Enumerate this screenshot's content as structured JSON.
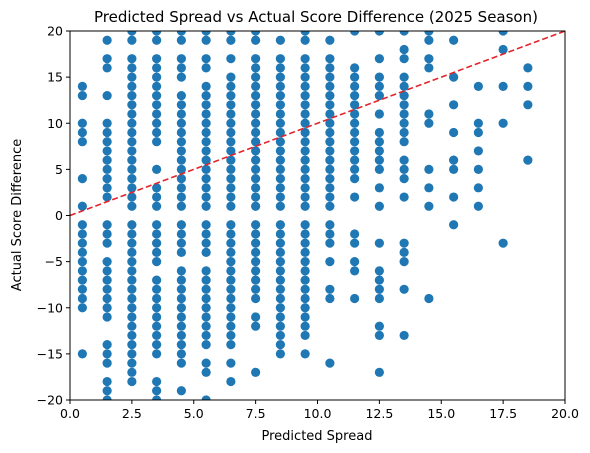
{
  "chart_data": {
    "type": "scatter",
    "title": "Predicted Spread vs Actual Score Difference (2025 Season)",
    "xlabel": "Predicted Spread",
    "ylabel": "Actual Score Difference",
    "xlim": [
      0,
      20
    ],
    "ylim": [
      -20,
      20
    ],
    "xticks": [
      0,
      2.5,
      5,
      7.5,
      10,
      12.5,
      15,
      17.5,
      20
    ],
    "xtick_labels": [
      "0.0",
      "2.5",
      "5.0",
      "7.5",
      "10.0",
      "12.5",
      "15.0",
      "17.5",
      "20.0"
    ],
    "yticks": [
      -20,
      -15,
      -10,
      -5,
      0,
      5,
      10,
      15,
      20
    ],
    "ytick_labels": [
      "−20",
      "−15",
      "−10",
      "−5",
      "0",
      "5",
      "10",
      "15",
      "20"
    ],
    "grid": false,
    "point_color": "#1f77b4",
    "reference_line": {
      "style": "dashed",
      "color": "#e3242b",
      "from": [
        0,
        0
      ],
      "to": [
        20,
        20
      ]
    },
    "points": [
      [
        0.5,
        14
      ],
      [
        0.5,
        13
      ],
      [
        0.5,
        10
      ],
      [
        0.5,
        9
      ],
      [
        0.5,
        8
      ],
      [
        0.5,
        4
      ],
      [
        0.5,
        1
      ],
      [
        0.5,
        -1
      ],
      [
        0.5,
        -2
      ],
      [
        0.5,
        -3
      ],
      [
        0.5,
        -4
      ],
      [
        0.5,
        -5
      ],
      [
        0.5,
        -6
      ],
      [
        0.5,
        -7
      ],
      [
        0.5,
        -8
      ],
      [
        0.5,
        -9
      ],
      [
        0.5,
        -10
      ],
      [
        0.5,
        -15
      ],
      [
        1.5,
        19
      ],
      [
        1.5,
        17
      ],
      [
        1.5,
        16
      ],
      [
        1.5,
        13
      ],
      [
        1.5,
        10
      ],
      [
        1.5,
        9
      ],
      [
        1.5,
        8
      ],
      [
        1.5,
        7
      ],
      [
        1.5,
        6
      ],
      [
        1.5,
        5
      ],
      [
        1.5,
        4
      ],
      [
        1.5,
        3
      ],
      [
        1.5,
        2
      ],
      [
        1.5,
        -1
      ],
      [
        1.5,
        -2
      ],
      [
        1.5,
        -3
      ],
      [
        1.5,
        -5
      ],
      [
        1.5,
        -6
      ],
      [
        1.5,
        -7
      ],
      [
        1.5,
        -8
      ],
      [
        1.5,
        -9
      ],
      [
        1.5,
        -10
      ],
      [
        1.5,
        -11
      ],
      [
        1.5,
        -14
      ],
      [
        1.5,
        -15
      ],
      [
        1.5,
        -16
      ],
      [
        1.5,
        -18
      ],
      [
        1.5,
        -19
      ],
      [
        1.5,
        -20
      ],
      [
        2.5,
        20
      ],
      [
        2.5,
        19
      ],
      [
        2.5,
        17
      ],
      [
        2.5,
        16
      ],
      [
        2.5,
        15
      ],
      [
        2.5,
        14
      ],
      [
        2.5,
        13
      ],
      [
        2.5,
        12
      ],
      [
        2.5,
        11
      ],
      [
        2.5,
        10
      ],
      [
        2.5,
        9
      ],
      [
        2.5,
        8
      ],
      [
        2.5,
        7
      ],
      [
        2.5,
        6
      ],
      [
        2.5,
        5
      ],
      [
        2.5,
        4
      ],
      [
        2.5,
        3
      ],
      [
        2.5,
        2
      ],
      [
        2.5,
        1
      ],
      [
        2.5,
        -1
      ],
      [
        2.5,
        -2
      ],
      [
        2.5,
        -3
      ],
      [
        2.5,
        -4
      ],
      [
        2.5,
        -5
      ],
      [
        2.5,
        -6
      ],
      [
        2.5,
        -7
      ],
      [
        2.5,
        -8
      ],
      [
        2.5,
        -9
      ],
      [
        2.5,
        -10
      ],
      [
        2.5,
        -11
      ],
      [
        2.5,
        -12
      ],
      [
        2.5,
        -13
      ],
      [
        2.5,
        -14
      ],
      [
        2.5,
        -15
      ],
      [
        2.5,
        -16
      ],
      [
        2.5,
        -17
      ],
      [
        2.5,
        -18
      ],
      [
        3.5,
        20
      ],
      [
        3.5,
        19
      ],
      [
        3.5,
        17
      ],
      [
        3.5,
        16
      ],
      [
        3.5,
        15
      ],
      [
        3.5,
        14
      ],
      [
        3.5,
        13
      ],
      [
        3.5,
        12
      ],
      [
        3.5,
        11
      ],
      [
        3.5,
        10
      ],
      [
        3.5,
        9
      ],
      [
        3.5,
        8
      ],
      [
        3.5,
        5
      ],
      [
        3.5,
        3
      ],
      [
        3.5,
        2
      ],
      [
        3.5,
        1
      ],
      [
        3.5,
        -1
      ],
      [
        3.5,
        -2
      ],
      [
        3.5,
        -3
      ],
      [
        3.5,
        -4
      ],
      [
        3.5,
        -5
      ],
      [
        3.5,
        -7
      ],
      [
        3.5,
        -8
      ],
      [
        3.5,
        -9
      ],
      [
        3.5,
        -10
      ],
      [
        3.5,
        -11
      ],
      [
        3.5,
        -12
      ],
      [
        3.5,
        -13
      ],
      [
        3.5,
        -14
      ],
      [
        3.5,
        -15
      ],
      [
        3.5,
        -18
      ],
      [
        3.5,
        -19
      ],
      [
        3.5,
        -20
      ],
      [
        4.5,
        20
      ],
      [
        4.5,
        19
      ],
      [
        4.5,
        17
      ],
      [
        4.5,
        16
      ],
      [
        4.5,
        15
      ],
      [
        4.5,
        13
      ],
      [
        4.5,
        12
      ],
      [
        4.5,
        11
      ],
      [
        4.5,
        10
      ],
      [
        4.5,
        9
      ],
      [
        4.5,
        8
      ],
      [
        4.5,
        7
      ],
      [
        4.5,
        6
      ],
      [
        4.5,
        5
      ],
      [
        4.5,
        4
      ],
      [
        4.5,
        3
      ],
      [
        4.5,
        2
      ],
      [
        4.5,
        1
      ],
      [
        4.5,
        -1
      ],
      [
        4.5,
        -2
      ],
      [
        4.5,
        -3
      ],
      [
        4.5,
        -4
      ],
      [
        4.5,
        -6
      ],
      [
        4.5,
        -7
      ],
      [
        4.5,
        -8
      ],
      [
        4.5,
        -9
      ],
      [
        4.5,
        -10
      ],
      [
        4.5,
        -11
      ],
      [
        4.5,
        -12
      ],
      [
        4.5,
        -13
      ],
      [
        4.5,
        -14
      ],
      [
        4.5,
        -15
      ],
      [
        4.5,
        -16
      ],
      [
        4.5,
        -19
      ],
      [
        5.5,
        20
      ],
      [
        5.5,
        19
      ],
      [
        5.5,
        17
      ],
      [
        5.5,
        16
      ],
      [
        5.5,
        14
      ],
      [
        5.5,
        13
      ],
      [
        5.5,
        12
      ],
      [
        5.5,
        11
      ],
      [
        5.5,
        10
      ],
      [
        5.5,
        9
      ],
      [
        5.5,
        8
      ],
      [
        5.5,
        7
      ],
      [
        5.5,
        6
      ],
      [
        5.5,
        5
      ],
      [
        5.5,
        4
      ],
      [
        5.5,
        3
      ],
      [
        5.5,
        2
      ],
      [
        5.5,
        1
      ],
      [
        5.5,
        -1
      ],
      [
        5.5,
        -2
      ],
      [
        5.5,
        -3
      ],
      [
        5.5,
        -4
      ],
      [
        5.5,
        -6
      ],
      [
        5.5,
        -7
      ],
      [
        5.5,
        -8
      ],
      [
        5.5,
        -9
      ],
      [
        5.5,
        -10
      ],
      [
        5.5,
        -11
      ],
      [
        5.5,
        -12
      ],
      [
        5.5,
        -13
      ],
      [
        5.5,
        -14
      ],
      [
        5.5,
        -16
      ],
      [
        5.5,
        -17
      ],
      [
        5.5,
        -20
      ],
      [
        6.5,
        20
      ],
      [
        6.5,
        19
      ],
      [
        6.5,
        17
      ],
      [
        6.5,
        15
      ],
      [
        6.5,
        14
      ],
      [
        6.5,
        13
      ],
      [
        6.5,
        12
      ],
      [
        6.5,
        11
      ],
      [
        6.5,
        10
      ],
      [
        6.5,
        9
      ],
      [
        6.5,
        8
      ],
      [
        6.5,
        7
      ],
      [
        6.5,
        6
      ],
      [
        6.5,
        5
      ],
      [
        6.5,
        4
      ],
      [
        6.5,
        3
      ],
      [
        6.5,
        2
      ],
      [
        6.5,
        1
      ],
      [
        6.5,
        -1
      ],
      [
        6.5,
        -2
      ],
      [
        6.5,
        -3
      ],
      [
        6.5,
        -4
      ],
      [
        6.5,
        -5
      ],
      [
        6.5,
        -6
      ],
      [
        6.5,
        -7
      ],
      [
        6.5,
        -8
      ],
      [
        6.5,
        -9
      ],
      [
        6.5,
        -10
      ],
      [
        6.5,
        -11
      ],
      [
        6.5,
        -12
      ],
      [
        6.5,
        -13
      ],
      [
        6.5,
        -14
      ],
      [
        6.5,
        -16
      ],
      [
        6.5,
        -18
      ],
      [
        7.5,
        20
      ],
      [
        7.5,
        19
      ],
      [
        7.5,
        17
      ],
      [
        7.5,
        16
      ],
      [
        7.5,
        15
      ],
      [
        7.5,
        14
      ],
      [
        7.5,
        13
      ],
      [
        7.5,
        12
      ],
      [
        7.5,
        11
      ],
      [
        7.5,
        10
      ],
      [
        7.5,
        9
      ],
      [
        7.5,
        8
      ],
      [
        7.5,
        7
      ],
      [
        7.5,
        6
      ],
      [
        7.5,
        5
      ],
      [
        7.5,
        4
      ],
      [
        7.5,
        3
      ],
      [
        7.5,
        2
      ],
      [
        7.5,
        1
      ],
      [
        7.5,
        -1
      ],
      [
        7.5,
        -2
      ],
      [
        7.5,
        -3
      ],
      [
        7.5,
        -4
      ],
      [
        7.5,
        -5
      ],
      [
        7.5,
        -6
      ],
      [
        7.5,
        -7
      ],
      [
        7.5,
        -8
      ],
      [
        7.5,
        -9
      ],
      [
        7.5,
        -11
      ],
      [
        7.5,
        -12
      ],
      [
        7.5,
        -17
      ],
      [
        8.5,
        19
      ],
      [
        8.5,
        17
      ],
      [
        8.5,
        16
      ],
      [
        8.5,
        15
      ],
      [
        8.5,
        14
      ],
      [
        8.5,
        13
      ],
      [
        8.5,
        12
      ],
      [
        8.5,
        11
      ],
      [
        8.5,
        10
      ],
      [
        8.5,
        9
      ],
      [
        8.5,
        8
      ],
      [
        8.5,
        7
      ],
      [
        8.5,
        6
      ],
      [
        8.5,
        5
      ],
      [
        8.5,
        4
      ],
      [
        8.5,
        3
      ],
      [
        8.5,
        2
      ],
      [
        8.5,
        1
      ],
      [
        8.5,
        -1
      ],
      [
        8.5,
        -2
      ],
      [
        8.5,
        -3
      ],
      [
        8.5,
        -4
      ],
      [
        8.5,
        -5
      ],
      [
        8.5,
        -6
      ],
      [
        8.5,
        -7
      ],
      [
        8.5,
        -8
      ],
      [
        8.5,
        -9
      ],
      [
        8.5,
        -10
      ],
      [
        8.5,
        -11
      ],
      [
        8.5,
        -12
      ],
      [
        8.5,
        -13
      ],
      [
        8.5,
        -14
      ],
      [
        8.5,
        -15
      ],
      [
        9.5,
        20
      ],
      [
        9.5,
        19
      ],
      [
        9.5,
        17
      ],
      [
        9.5,
        16
      ],
      [
        9.5,
        15
      ],
      [
        9.5,
        14
      ],
      [
        9.5,
        13
      ],
      [
        9.5,
        12
      ],
      [
        9.5,
        11
      ],
      [
        9.5,
        10
      ],
      [
        9.5,
        9
      ],
      [
        9.5,
        8
      ],
      [
        9.5,
        7
      ],
      [
        9.5,
        6
      ],
      [
        9.5,
        5
      ],
      [
        9.5,
        4
      ],
      [
        9.5,
        3
      ],
      [
        9.5,
        2
      ],
      [
        9.5,
        1
      ],
      [
        9.5,
        -1
      ],
      [
        9.5,
        -2
      ],
      [
        9.5,
        -3
      ],
      [
        9.5,
        -4
      ],
      [
        9.5,
        -5
      ],
      [
        9.5,
        -6
      ],
      [
        9.5,
        -7
      ],
      [
        9.5,
        -8
      ],
      [
        9.5,
        -9
      ],
      [
        9.5,
        -10
      ],
      [
        9.5,
        -11
      ],
      [
        9.5,
        -12
      ],
      [
        9.5,
        -13
      ],
      [
        9.5,
        -15
      ],
      [
        10.5,
        19
      ],
      [
        10.5,
        17
      ],
      [
        10.5,
        16
      ],
      [
        10.5,
        15
      ],
      [
        10.5,
        14
      ],
      [
        10.5,
        13
      ],
      [
        10.5,
        12
      ],
      [
        10.5,
        11
      ],
      [
        10.5,
        10
      ],
      [
        10.5,
        9
      ],
      [
        10.5,
        8
      ],
      [
        10.5,
        7
      ],
      [
        10.5,
        6
      ],
      [
        10.5,
        5
      ],
      [
        10.5,
        4
      ],
      [
        10.5,
        3
      ],
      [
        10.5,
        2
      ],
      [
        10.5,
        1
      ],
      [
        10.5,
        -1
      ],
      [
        10.5,
        -2
      ],
      [
        10.5,
        -3
      ],
      [
        10.5,
        -5
      ],
      [
        10.5,
        -8
      ],
      [
        10.5,
        -9
      ],
      [
        10.5,
        -16
      ],
      [
        11.5,
        20
      ],
      [
        11.5,
        16
      ],
      [
        11.5,
        15
      ],
      [
        11.5,
        14
      ],
      [
        11.5,
        13
      ],
      [
        11.5,
        12
      ],
      [
        11.5,
        11
      ],
      [
        11.5,
        10
      ],
      [
        11.5,
        9
      ],
      [
        11.5,
        8
      ],
      [
        11.5,
        7
      ],
      [
        11.5,
        6
      ],
      [
        11.5,
        5
      ],
      [
        11.5,
        4
      ],
      [
        11.5,
        2
      ],
      [
        11.5,
        -2
      ],
      [
        11.5,
        -3
      ],
      [
        11.5,
        -5
      ],
      [
        11.5,
        -6
      ],
      [
        11.5,
        -9
      ],
      [
        12.5,
        20
      ],
      [
        12.5,
        17
      ],
      [
        12.5,
        15
      ],
      [
        12.5,
        14
      ],
      [
        12.5,
        13
      ],
      [
        12.5,
        11
      ],
      [
        12.5,
        9
      ],
      [
        12.5,
        8
      ],
      [
        12.5,
        7
      ],
      [
        12.5,
        6
      ],
      [
        12.5,
        5
      ],
      [
        12.5,
        3
      ],
      [
        12.5,
        1
      ],
      [
        12.5,
        -3
      ],
      [
        12.5,
        -6
      ],
      [
        12.5,
        -7
      ],
      [
        12.5,
        -8
      ],
      [
        12.5,
        -9
      ],
      [
        12.5,
        -12
      ],
      [
        12.5,
        -13
      ],
      [
        12.5,
        -17
      ],
      [
        13.5,
        20
      ],
      [
        13.5,
        18
      ],
      [
        13.5,
        17
      ],
      [
        13.5,
        15
      ],
      [
        13.5,
        14
      ],
      [
        13.5,
        13
      ],
      [
        13.5,
        12
      ],
      [
        13.5,
        11
      ],
      [
        13.5,
        10
      ],
      [
        13.5,
        9
      ],
      [
        13.5,
        8
      ],
      [
        13.5,
        6
      ],
      [
        13.5,
        5
      ],
      [
        13.5,
        4
      ],
      [
        13.5,
        2
      ],
      [
        13.5,
        -3
      ],
      [
        13.5,
        -4
      ],
      [
        13.5,
        -5
      ],
      [
        13.5,
        -8
      ],
      [
        13.5,
        -13
      ],
      [
        14.5,
        20
      ],
      [
        14.5,
        19
      ],
      [
        14.5,
        17
      ],
      [
        14.5,
        16
      ],
      [
        14.5,
        11
      ],
      [
        14.5,
        10
      ],
      [
        14.5,
        5
      ],
      [
        14.5,
        3
      ],
      [
        14.5,
        1
      ],
      [
        14.5,
        -9
      ],
      [
        15.5,
        19
      ],
      [
        15.5,
        15
      ],
      [
        15.5,
        12
      ],
      [
        15.5,
        9
      ],
      [
        15.5,
        6
      ],
      [
        15.5,
        5
      ],
      [
        15.5,
        2
      ],
      [
        15.5,
        -1
      ],
      [
        16.5,
        14
      ],
      [
        16.5,
        10
      ],
      [
        16.5,
        9
      ],
      [
        16.5,
        7
      ],
      [
        16.5,
        5
      ],
      [
        16.5,
        3
      ],
      [
        16.5,
        1
      ],
      [
        17.5,
        20
      ],
      [
        17.5,
        18
      ],
      [
        17.5,
        14
      ],
      [
        17.5,
        10
      ],
      [
        17.5,
        -3
      ],
      [
        18.5,
        16
      ],
      [
        18.5,
        14
      ],
      [
        18.5,
        12
      ],
      [
        18.5,
        6
      ]
    ]
  }
}
